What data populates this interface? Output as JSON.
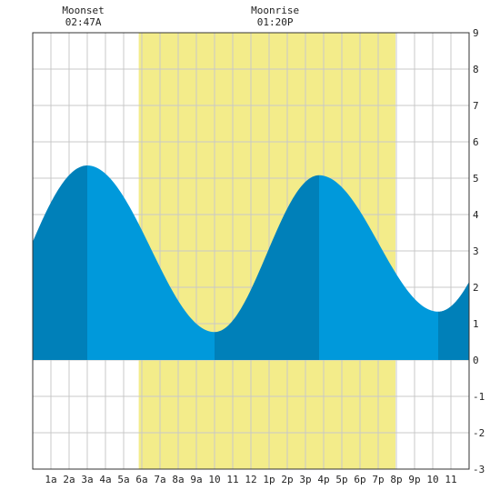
{
  "chart_data": {
    "type": "area",
    "title": "",
    "xlabel": "",
    "ylabel": "",
    "x_unit": "hour of day",
    "xlim": [
      0,
      24
    ],
    "ylim": [
      -3,
      9
    ],
    "y_ticks": [
      -3,
      -2,
      -1,
      0,
      1,
      2,
      3,
      4,
      5,
      6,
      7,
      8,
      9
    ],
    "y_tick_labels": [
      "-3",
      "-2",
      "-1",
      "0",
      "1",
      "2",
      "3",
      "4",
      "5",
      "6",
      "7",
      "8",
      "9"
    ],
    "x_ticks": [
      1,
      2,
      3,
      4,
      5,
      6,
      7,
      8,
      9,
      10,
      11,
      12,
      13,
      14,
      15,
      16,
      17,
      18,
      19,
      20,
      21,
      22,
      23
    ],
    "x_tick_labels": [
      "1a",
      "2a",
      "3a",
      "4a",
      "5a",
      "6a",
      "7a",
      "8a",
      "9a",
      "10",
      "11",
      "12",
      "1p",
      "2p",
      "3p",
      "4p",
      "5p",
      "6p",
      "7p",
      "8p",
      "9p",
      "10",
      "11"
    ],
    "grid": true,
    "daylight": {
      "start": 5.83,
      "end": 19.95,
      "color": "#f3ec8a"
    },
    "tide_extremes": [
      {
        "x": 3.0,
        "y": 5.35,
        "kind": "high"
      },
      {
        "x": 10.0,
        "y": 0.77,
        "kind": "low"
      },
      {
        "x": 15.75,
        "y": 5.08,
        "kind": "high"
      },
      {
        "x": 22.3,
        "y": 1.33,
        "kind": "low"
      }
    ],
    "start_level": 3.25,
    "end_level": 2.15,
    "colors": {
      "dark": "#0080b9",
      "light": "#0099db",
      "grid": "#c8c8c8"
    },
    "moon_events": [
      {
        "label": "Moonset",
        "time": "02:47A",
        "x": 2.78
      },
      {
        "label": "Moonrise",
        "time": "01:20P",
        "x": 13.33
      }
    ]
  }
}
